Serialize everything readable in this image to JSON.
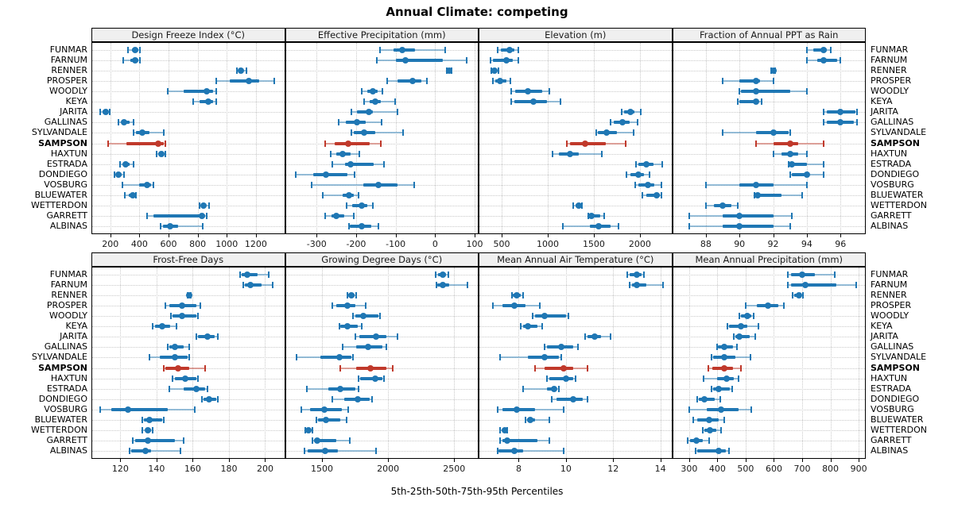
{
  "title": "Annual Climate: competing",
  "axis_label": "5th-25th-50th-75th-95th Percentiles",
  "percentiles": [
    5,
    25,
    50,
    75,
    95
  ],
  "highlight_site": "SAMPSON",
  "colors": {
    "series": "#1f77b4",
    "series_light": "rgba(31,119,180,0.45)",
    "highlight": "#c0392b",
    "highlight_light": "rgba(192,57,43,0.45)",
    "header_bg": "#f0f0f0",
    "grid": "#c9c9c9"
  },
  "sites": [
    "FUNMAR",
    "FARNUM",
    "RENNER",
    "PROSPER",
    "WOODLY",
    "KEYA",
    "JARITA",
    "GALLINAS",
    "SYLVANDALE",
    "SAMPSON",
    "HAXTUN",
    "ESTRADA",
    "DONDIEGO",
    "VOSBURG",
    "BLUEWATER",
    "WETTERDON",
    "GARRETT",
    "ALBINAS"
  ],
  "chart_data": [
    {
      "type": "dot-interval",
      "title": "Design Freeze Index (°C)",
      "xlim": [
        70,
        1400
      ],
      "ticks": [
        200,
        400,
        600,
        800,
        1000,
        1200
      ],
      "values": [
        [
          320,
          350,
          370,
          390,
          405
        ],
        [
          290,
          340,
          368,
          395,
          405
        ],
        [
          1070,
          1085,
          1098,
          1115,
          1135
        ],
        [
          930,
          1020,
          1150,
          1225,
          1325
        ],
        [
          595,
          705,
          860,
          905,
          925
        ],
        [
          770,
          815,
          875,
          905,
          925
        ],
        [
          128,
          148,
          167,
          185,
          196
        ],
        [
          258,
          280,
          296,
          330,
          358
        ],
        [
          358,
          377,
          422,
          468,
          568
        ],
        [
          185,
          310,
          530,
          565,
          578
        ],
        [
          520,
          535,
          550,
          565,
          580
        ],
        [
          267,
          290,
          305,
          330,
          358
        ],
        [
          231,
          245,
          258,
          275,
          295
        ],
        [
          285,
          400,
          455,
          480,
          497
        ],
        [
          300,
          325,
          355,
          365,
          378
        ],
        [
          815,
          830,
          842,
          855,
          878
        ],
        [
          450,
          495,
          830,
          850,
          860
        ],
        [
          546,
          560,
          610,
          668,
          832
        ]
      ]
    },
    {
      "type": "dot-interval",
      "title": "Effective Precipitation (mm)",
      "xlim": [
        -380,
        110
      ],
      "ticks": [
        -300,
        -200,
        -100,
        0,
        100
      ],
      "values": [
        [
          -140,
          -105,
          -83,
          -50,
          25
        ],
        [
          -147,
          -100,
          -76,
          20,
          80
        ],
        [
          30,
          33,
          35,
          38,
          42
        ],
        [
          -121,
          -95,
          -57,
          -35,
          -21
        ],
        [
          -186,
          -172,
          -158,
          -145,
          -133
        ],
        [
          -179,
          -166,
          -151,
          -138,
          -101
        ],
        [
          -212,
          -198,
          -168,
          -158,
          -95
        ],
        [
          -244,
          -226,
          -197,
          -175,
          -136
        ],
        [
          -211,
          -205,
          -179,
          -151,
          -81
        ],
        [
          -278,
          -255,
          -220,
          -165,
          -138
        ],
        [
          -265,
          -251,
          -234,
          -214,
          -191
        ],
        [
          -260,
          -228,
          -213,
          -155,
          -129
        ],
        [
          -352,
          -309,
          -277,
          -222,
          -203
        ],
        [
          -312,
          -181,
          -144,
          -95,
          -52
        ],
        [
          -285,
          -235,
          -219,
          -205,
          -194
        ],
        [
          -224,
          -210,
          -186,
          -172,
          -157
        ],
        [
          -278,
          -262,
          -251,
          -230,
          -205
        ],
        [
          -219,
          -216,
          -185,
          -161,
          -144
        ]
      ]
    },
    {
      "type": "dot-interval",
      "title": "Elevation (m)",
      "xlim": [
        250,
        2350
      ],
      "ticks": [
        500,
        1000,
        1500,
        2000
      ],
      "values": [
        [
          455,
          490,
          585,
          635,
          685
        ],
        [
          377,
          406,
          555,
          620,
          678
        ],
        [
          385,
          402,
          420,
          442,
          463
        ],
        [
          406,
          434,
          483,
          549,
          592
        ],
        [
          607,
          650,
          788,
          937,
          1017
        ],
        [
          607,
          635,
          842,
          995,
          1138
        ],
        [
          1799,
          1828,
          1894,
          1943,
          2006
        ],
        [
          1684,
          1713,
          1808,
          1885,
          1977
        ],
        [
          1526,
          1546,
          1635,
          1747,
          1934
        ],
        [
          1210,
          1240,
          1405,
          1627,
          1848
        ],
        [
          1052,
          1124,
          1239,
          1339,
          1583
        ],
        [
          1957,
          1986,
          2072,
          2144,
          2245
        ],
        [
          1857,
          1900,
          1980,
          2043,
          2101
        ],
        [
          1951,
          1986,
          2086,
          2158,
          2230
        ],
        [
          2029,
          2072,
          2181,
          2215,
          2232
        ],
        [
          1276,
          1300,
          1333,
          1350,
          1368
        ],
        [
          1440,
          1454,
          1477,
          1569,
          1612
        ],
        [
          1167,
          1454,
          1555,
          1684,
          1770
        ]
      ]
    },
    {
      "type": "dot-interval",
      "title": "Fraction of Annual PPT as Rain",
      "xlim": [
        86,
        97.5
      ],
      "ticks": [
        88,
        90,
        92,
        94,
        96
      ],
      "values": [
        [
          94,
          94.4,
          95,
          95.2,
          95.4
        ],
        [
          94,
          94.6,
          95,
          95.8,
          96
        ],
        [
          91.9,
          92,
          92,
          92,
          92.1
        ],
        [
          89,
          90,
          91,
          91.2,
          92
        ],
        [
          90,
          90.1,
          91,
          93,
          94
        ],
        [
          89.9,
          90,
          91,
          91.1,
          91.3
        ],
        [
          95,
          95.2,
          96,
          96.9,
          97
        ],
        [
          95,
          95.2,
          96,
          96.8,
          97
        ],
        [
          89,
          91,
          92,
          92.9,
          93
        ],
        [
          91,
          92,
          93,
          93.5,
          95
        ],
        [
          92,
          92.5,
          93,
          93.5,
          94
        ],
        [
          92.9,
          93,
          93.1,
          94,
          95
        ],
        [
          93,
          93.1,
          94,
          94.1,
          95
        ],
        [
          88,
          90,
          91,
          92,
          94
        ],
        [
          90.9,
          91,
          91.1,
          92.5,
          93.7
        ],
        [
          88,
          88.5,
          89,
          89.5,
          89.9
        ],
        [
          87,
          89,
          90,
          92,
          93.1
        ],
        [
          87,
          89,
          90,
          92,
          93
        ]
      ]
    },
    {
      "type": "dot-interval",
      "title": "Frost-Free Days",
      "xlim": [
        104,
        211
      ],
      "ticks": [
        120,
        140,
        160,
        180,
        200
      ],
      "values": [
        [
          186,
          187,
          190,
          196,
          202
        ],
        [
          188,
          189,
          192,
          198,
          204
        ],
        [
          157,
          157.5,
          158,
          158.5,
          159
        ],
        [
          145,
          147,
          154,
          162,
          164
        ],
        [
          148,
          149,
          154,
          162,
          163
        ],
        [
          138,
          139,
          143,
          147.5,
          151
        ],
        [
          162,
          163,
          168,
          172,
          174
        ],
        [
          146,
          147,
          150,
          155,
          158
        ],
        [
          136,
          142,
          150,
          157,
          158
        ],
        [
          144,
          145,
          152,
          158,
          167
        ],
        [
          149,
          150,
          156,
          162,
          163
        ],
        [
          147,
          155,
          162,
          167,
          168
        ],
        [
          165,
          166,
          169,
          173,
          174
        ],
        [
          109,
          115,
          124,
          146,
          161
        ],
        [
          132,
          133,
          136,
          143,
          144
        ],
        [
          132,
          134,
          135,
          137,
          138
        ],
        [
          127,
          128,
          135,
          150,
          155
        ],
        [
          125,
          126,
          134,
          137,
          153
        ]
      ]
    },
    {
      "type": "dot-interval",
      "title": "Growing Degree Days (°C)",
      "xlim": [
        1220,
        2685
      ],
      "ticks": [
        1500,
        2000,
        2500
      ],
      "values": [
        [
          2360,
          2380,
          2415,
          2440,
          2455
        ],
        [
          2365,
          2375,
          2415,
          2460,
          2600
        ],
        [
          1690,
          1700,
          1724,
          1745,
          1760
        ],
        [
          1580,
          1610,
          1690,
          1750,
          1830
        ],
        [
          1735,
          1755,
          1815,
          1925,
          1940
        ],
        [
          1630,
          1640,
          1690,
          1770,
          1800
        ],
        [
          1755,
          1780,
          1910,
          1990,
          2070
        ],
        [
          1655,
          1760,
          1850,
          1960,
          1990
        ],
        [
          1310,
          1490,
          1630,
          1720,
          1735
        ],
        [
          1640,
          1760,
          1865,
          1990,
          2035
        ],
        [
          1775,
          1790,
          1900,
          1955,
          1970
        ],
        [
          1385,
          1550,
          1640,
          1750,
          1775
        ],
        [
          1580,
          1670,
          1770,
          1860,
          1880
        ],
        [
          1345,
          1410,
          1520,
          1650,
          1700
        ],
        [
          1455,
          1470,
          1530,
          1640,
          1685
        ],
        [
          1375,
          1385,
          1400,
          1415,
          1430
        ],
        [
          1430,
          1440,
          1465,
          1610,
          1710
        ],
        [
          1370,
          1390,
          1525,
          1620,
          1910
        ]
      ]
    },
    {
      "type": "dot-interval",
      "title": "Mean Annual Air Temperature (°C)",
      "xlim": [
        6.3,
        14.5
      ],
      "ticks": [
        8,
        10,
        12,
        14
      ],
      "values": [
        [
          12.6,
          12.7,
          13,
          13.2,
          13.3
        ],
        [
          12.7,
          12.8,
          13,
          13.4,
          14.1
        ],
        [
          7.7,
          7.75,
          7.9,
          8.1,
          8.2
        ],
        [
          6.9,
          7.3,
          7.8,
          8.3,
          8.9
        ],
        [
          8.6,
          8.7,
          9.1,
          10,
          10.1
        ],
        [
          8.1,
          8.2,
          8.4,
          8.8,
          9
        ],
        [
          10.8,
          10.9,
          11.2,
          11.5,
          11.9
        ],
        [
          9.1,
          9.2,
          9.8,
          10.3,
          10.5
        ],
        [
          7.2,
          8.4,
          9.1,
          9.7,
          9.8
        ],
        [
          8.7,
          9.1,
          9.9,
          10.3,
          10.9
        ],
        [
          9.2,
          9.3,
          10,
          10.3,
          10.4
        ],
        [
          8.2,
          9.2,
          9.5,
          9.6,
          9.7
        ],
        [
          9.4,
          9.6,
          10.3,
          10.7,
          10.9
        ],
        [
          7.1,
          7.3,
          7.9,
          8.7,
          9.9
        ],
        [
          8.3,
          8.35,
          8.5,
          8.7,
          9.3
        ],
        [
          7.2,
          7.3,
          7.4,
          7.45,
          7.5
        ],
        [
          7.2,
          7.3,
          7.5,
          8.8,
          9.3
        ],
        [
          7.1,
          7.15,
          7.8,
          8.2,
          9.9
        ]
      ]
    },
    {
      "type": "dot-interval",
      "title": "Mean Annual Precipitation (mm)",
      "xlim": [
        240,
        925
      ],
      "ticks": [
        300,
        400,
        500,
        600,
        700,
        800,
        900
      ],
      "values": [
        [
          650,
          660,
          700,
          745,
          815
        ],
        [
          650,
          660,
          710,
          820,
          890
        ],
        [
          665,
          672,
          688,
          697,
          702
        ],
        [
          500,
          540,
          580,
          615,
          635
        ],
        [
          477,
          483,
          505,
          520,
          528
        ],
        [
          435,
          442,
          482,
          507,
          545
        ],
        [
          458,
          463,
          477,
          515,
          533
        ],
        [
          398,
          402,
          423,
          455,
          470
        ],
        [
          380,
          386,
          425,
          465,
          518
        ],
        [
          367,
          382,
          423,
          455,
          483
        ],
        [
          350,
          400,
          434,
          458,
          474
        ],
        [
          380,
          386,
          404,
          445,
          451
        ],
        [
          328,
          334,
          355,
          390,
          411
        ],
        [
          300,
          362,
          414,
          474,
          521
        ],
        [
          314,
          330,
          370,
          404,
          423
        ],
        [
          347,
          353,
          375,
          395,
          412
        ],
        [
          294,
          302,
          325,
          348,
          372
        ],
        [
          323,
          330,
          404,
          430,
          440
        ]
      ]
    }
  ]
}
